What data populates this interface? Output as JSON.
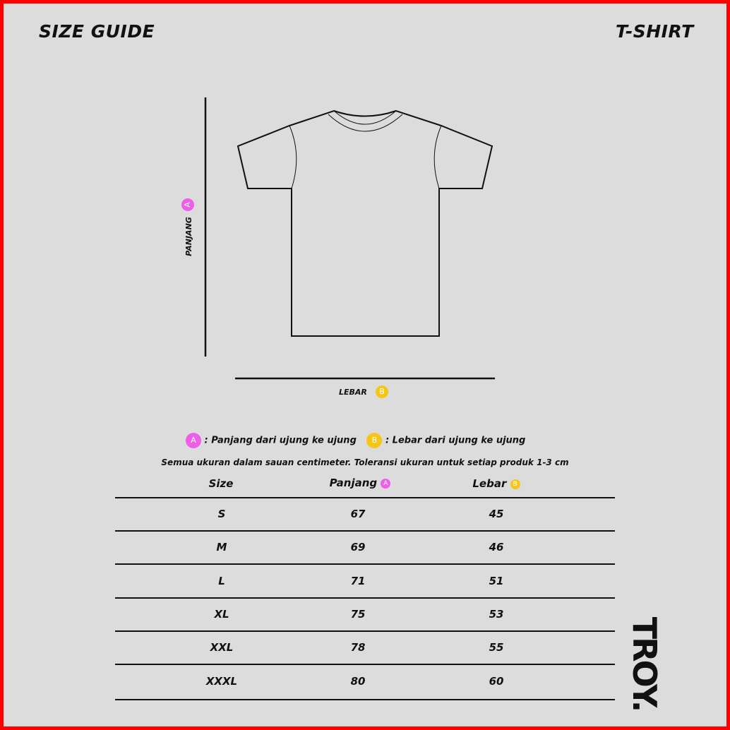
{
  "header": {
    "title": "SIZE GUIDE",
    "product": "T-SHIRT"
  },
  "diagram": {
    "length_label": "PANJANG",
    "width_label": "LEBAR",
    "badge_a": "A",
    "badge_b": "B"
  },
  "legend": {
    "a_text": ": Panjang dari ujung ke ujung",
    "b_text": ": Lebar dari ujung ke ujung",
    "note": "Semua ukuran dalam sauan centimeter. Toleransi ukuran untuk setiap produk 1-3 cm"
  },
  "colors": {
    "badge_a": "#ee5ee8",
    "badge_b": "#f5c518",
    "frame": "#ff0000"
  },
  "table": {
    "headers": [
      "Size",
      "Panjang",
      "Lebar"
    ],
    "rows": [
      [
        "S",
        "67",
        "45"
      ],
      [
        "M",
        "69",
        "46"
      ],
      [
        "L",
        "71",
        "51"
      ],
      [
        "XL",
        "75",
        "53"
      ],
      [
        "XXL",
        "78",
        "55"
      ],
      [
        "XXXL",
        "80",
        "60"
      ]
    ]
  },
  "logo": "TROY."
}
